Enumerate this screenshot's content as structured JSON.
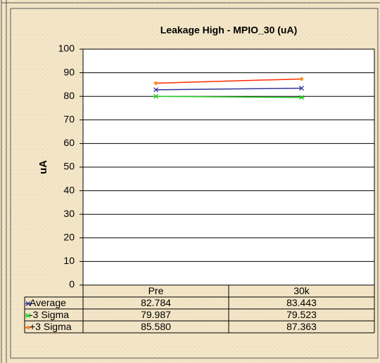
{
  "chart_data": {
    "type": "line",
    "title": "Leakage High - MPIO_30 (uA)",
    "y_label": "uA",
    "categories": [
      "Pre",
      "30k"
    ],
    "series": [
      {
        "name": "Average",
        "color": "#333399",
        "values": [
          82.784,
          83.443
        ]
      },
      {
        "name": "-3 Sigma",
        "color": "#22cc22",
        "values": [
          79.987,
          79.523
        ]
      },
      {
        "name": "+3 Sigma",
        "color": "#ff2a00",
        "values": [
          85.58,
          87.363
        ],
        "value_labels": [
          "85.580",
          "87.363"
        ]
      }
    ],
    "ylim": [
      0,
      100
    ],
    "yticks": [
      0,
      10,
      20,
      30,
      40,
      50,
      60,
      70,
      80,
      90,
      100
    ],
    "grid": true
  }
}
